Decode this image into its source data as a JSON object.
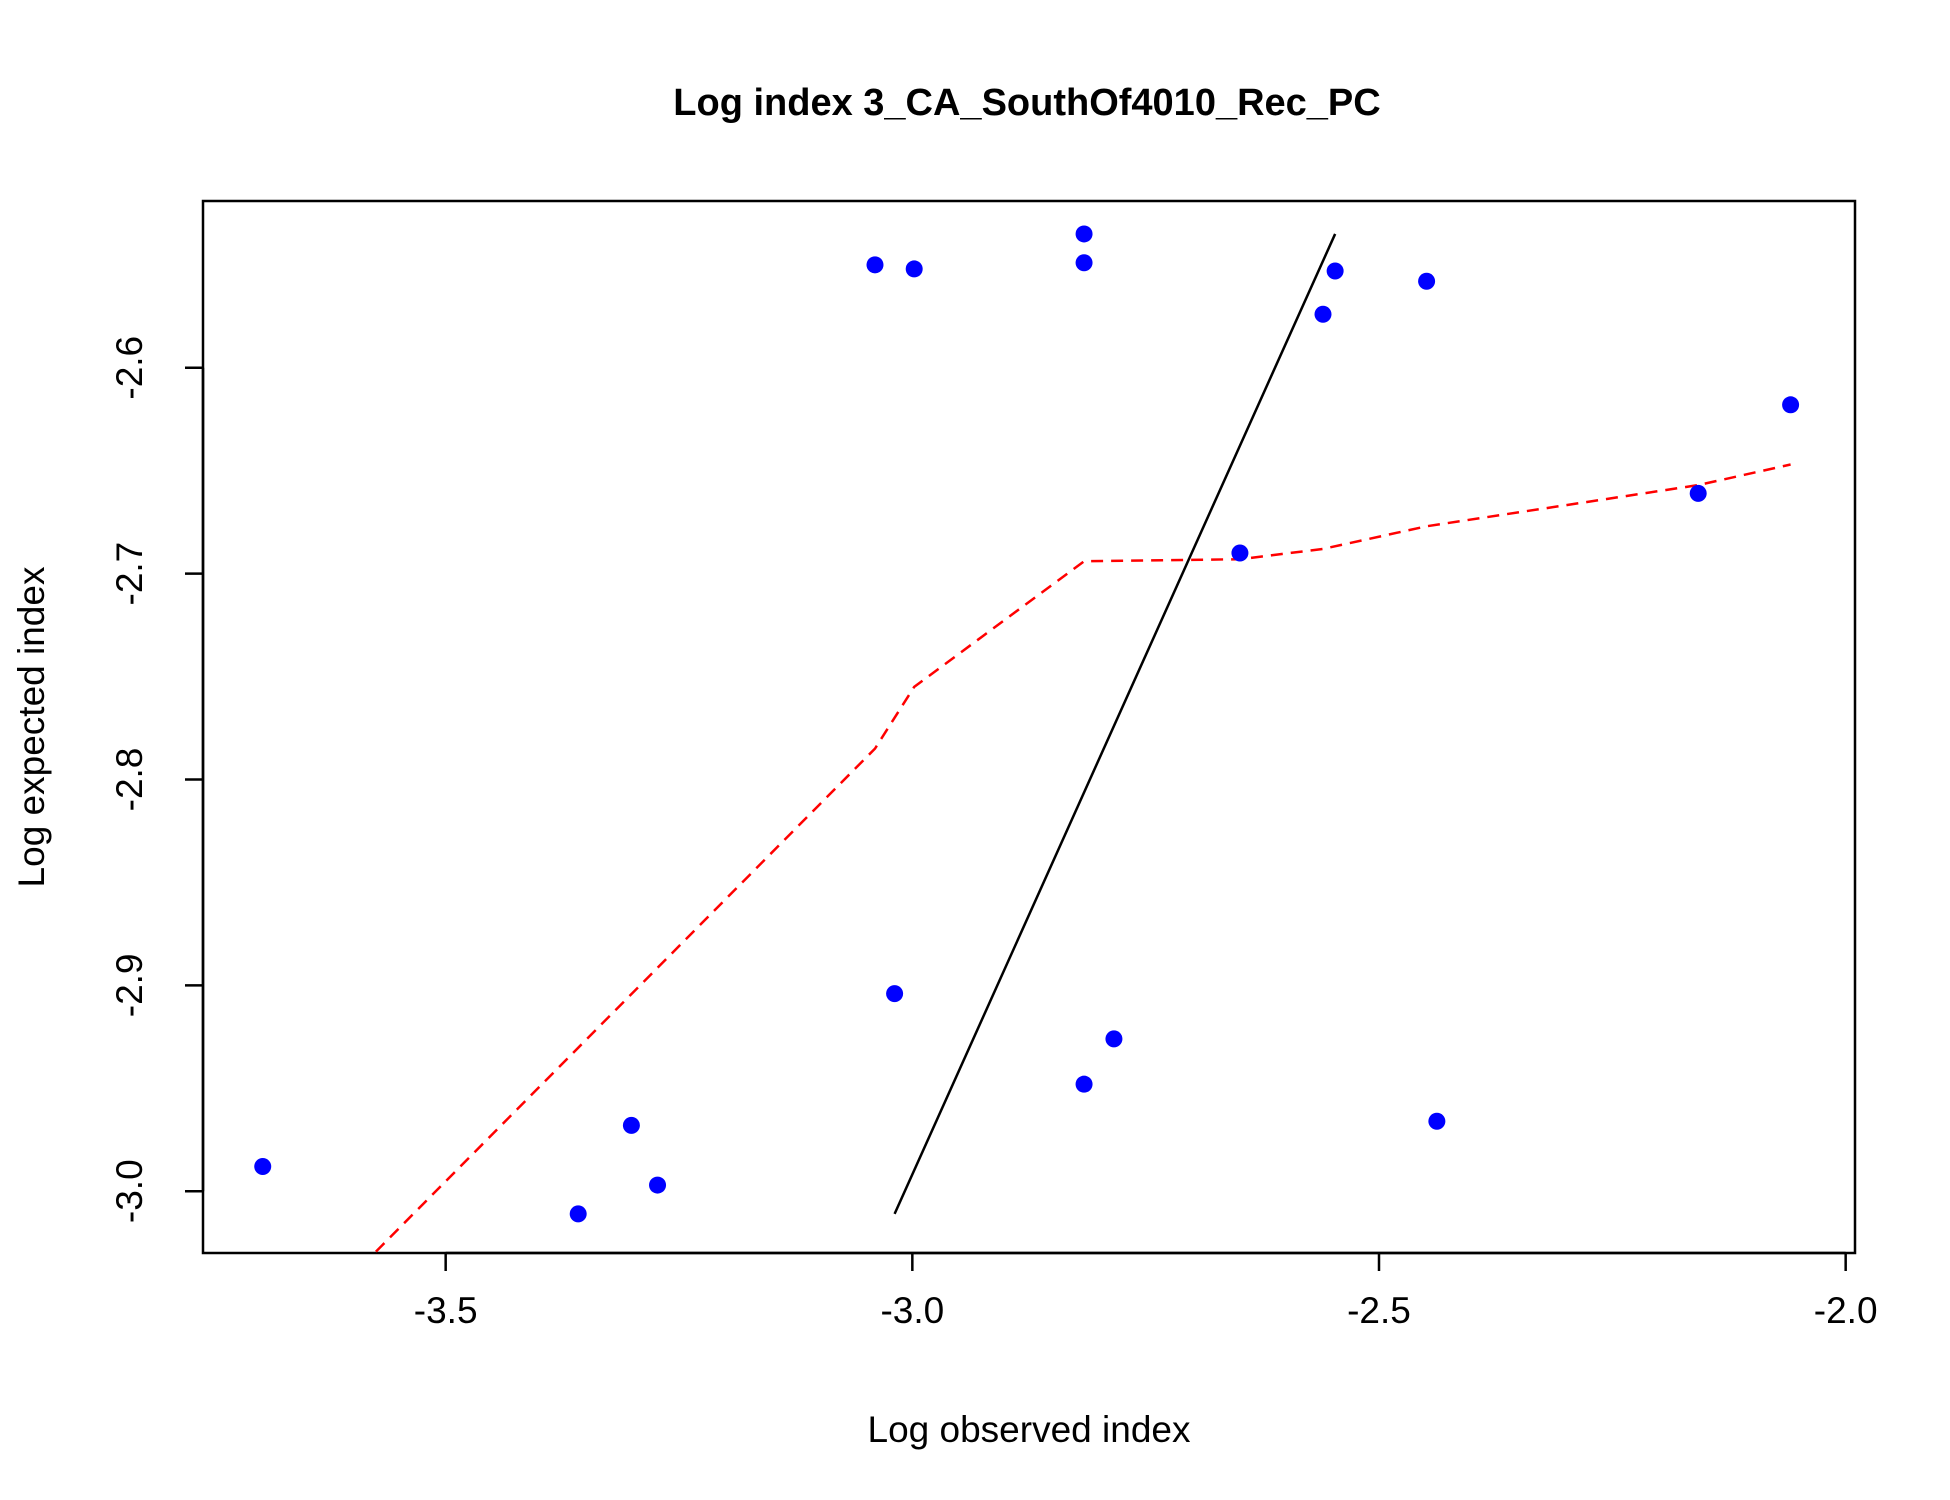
{
  "chart_data": {
    "type": "scatter",
    "title": "Log index 3_CA_SouthOf4010_Rec_PC",
    "xlabel": "Log observed index",
    "ylabel": "Log expected index",
    "xlim": [
      -3.76,
      -1.99
    ],
    "ylim": [
      -3.03,
      -2.519
    ],
    "x_ticks": [
      -3.5,
      -3.0,
      -2.5,
      -2.0
    ],
    "x_tick_labels": [
      "-3.5",
      "-3.0",
      "-2.5",
      "-2.0"
    ],
    "y_ticks": [
      -3.0,
      -2.9,
      -2.8,
      -2.7,
      -2.6
    ],
    "y_tick_labels": [
      "-3.0",
      "-2.9",
      "-2.8",
      "-2.7",
      "-2.6"
    ],
    "grid": false,
    "legend": "none",
    "colors": {
      "points": "#0000ff",
      "one_to_one_line": "#000000",
      "smoother": "#ff0000"
    },
    "series": [
      {
        "kind": "points",
        "x": [
          -3.696,
          -3.358,
          -3.301,
          -3.273,
          -3.04,
          -3.019,
          -2.998,
          -2.816,
          -2.816,
          -2.816,
          -2.784,
          -2.649,
          -2.56,
          -2.547,
          -2.449,
          -2.438,
          -2.158,
          -2.059
        ],
        "y": [
          -2.988,
          -3.011,
          -2.968,
          -2.997,
          -2.55,
          -2.904,
          -2.552,
          -2.535,
          -2.549,
          -2.948,
          -2.926,
          -2.69,
          -2.574,
          -2.553,
          -2.558,
          -2.966,
          -2.661,
          -2.618
        ]
      },
      {
        "kind": "line",
        "style": "solid",
        "x": [
          -3.019,
          -2.547
        ],
        "y": [
          -3.011,
          -2.535
        ]
      },
      {
        "kind": "line",
        "style": "dashed",
        "x": [
          -3.62,
          -3.04,
          -2.998,
          -2.816,
          -2.649,
          -2.56,
          -2.449,
          -2.158,
          -2.059
        ],
        "y": [
          -3.05,
          -2.785,
          -2.755,
          -2.694,
          -2.693,
          -2.688,
          -2.677,
          -2.657,
          -2.647
        ]
      }
    ]
  }
}
